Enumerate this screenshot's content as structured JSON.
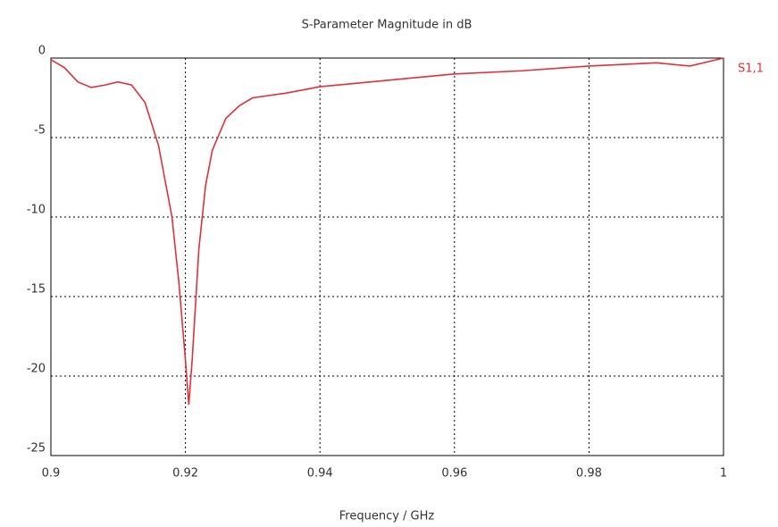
{
  "chart_data": {
    "type": "line",
    "title": "S-Parameter Magnitude in dB",
    "x_label": "Frequency / GHz",
    "x": [
      0.9,
      0.902,
      0.904,
      0.906,
      0.908,
      0.91,
      0.912,
      0.914,
      0.916,
      0.918,
      0.919,
      0.92,
      0.9205,
      0.921,
      0.922,
      0.923,
      0.924,
      0.926,
      0.928,
      0.93,
      0.935,
      0.94,
      0.95,
      0.96,
      0.97,
      0.98,
      0.99,
      0.995,
      1.0
    ],
    "series": [
      {
        "name": "S1,1",
        "color": "#e0303a",
        "values": [
          -0.1,
          -0.6,
          -1.5,
          -1.85,
          -1.7,
          -1.5,
          -1.7,
          -2.8,
          -5.5,
          -10,
          -14,
          -19,
          -21.8,
          -19,
          -12,
          -8,
          -5.8,
          -3.8,
          -3,
          -2.5,
          -2.2,
          -1.8,
          -1.4,
          -1.0,
          -0.8,
          -0.5,
          -0.3,
          -0.5,
          0
        ]
      }
    ],
    "xlim": [
      0.9,
      1.0
    ],
    "xticks": [
      0.9,
      0.92,
      0.94,
      0.96,
      0.98,
      1
    ],
    "ylim": [
      -25,
      0
    ],
    "yticks": [
      0,
      -5,
      -10,
      -15,
      -20,
      -25
    ],
    "grid": true
  }
}
